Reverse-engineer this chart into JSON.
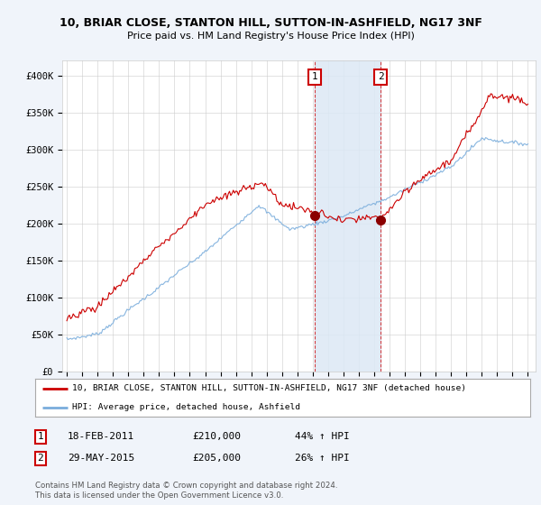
{
  "title_line1": "10, BRIAR CLOSE, STANTON HILL, SUTTON-IN-ASHFIELD, NG17 3NF",
  "title_line2": "Price paid vs. HM Land Registry's House Price Index (HPI)",
  "ylim": [
    0,
    420000
  ],
  "yticks": [
    0,
    50000,
    100000,
    150000,
    200000,
    250000,
    300000,
    350000,
    400000
  ],
  "ytick_labels": [
    "£0",
    "£50K",
    "£100K",
    "£150K",
    "£200K",
    "£250K",
    "£300K",
    "£350K",
    "£400K"
  ],
  "bg_color": "#f0f4fa",
  "plot_bg": "#ffffff",
  "transaction1": {
    "date_num": 2011.12,
    "price": 210000,
    "label": "1",
    "date_str": "18-FEB-2011",
    "pct": "44%"
  },
  "transaction2": {
    "date_num": 2015.41,
    "price": 205000,
    "label": "2",
    "date_str": "29-MAY-2015",
    "pct": "26%"
  },
  "legend_line1": "10, BRIAR CLOSE, STANTON HILL, SUTTON-IN-ASHFIELD, NG17 3NF (detached house)",
  "legend_line2": "HPI: Average price, detached house, Ashfield",
  "footer1": "Contains HM Land Registry data © Crown copyright and database right 2024.",
  "footer2": "This data is licensed under the Open Government Licence v3.0.",
  "red_color": "#cc0000",
  "blue_color": "#7aaddc",
  "shade_color": "#dce8f5",
  "grid_color": "#cccccc"
}
